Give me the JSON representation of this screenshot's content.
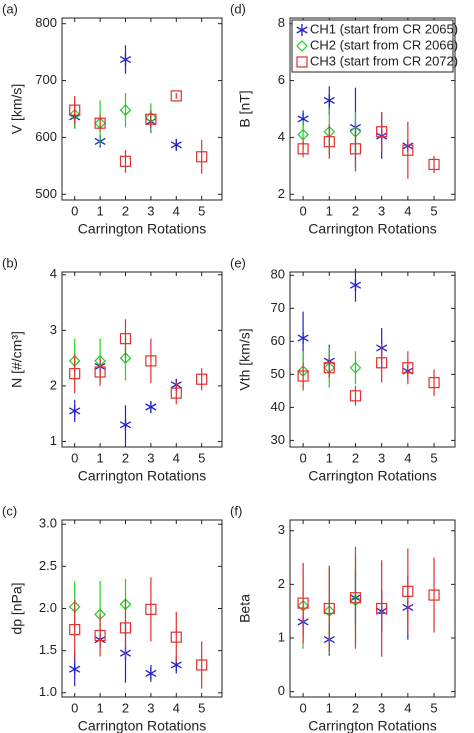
{
  "chart_data": [
    {
      "type": "scatter",
      "label": "(a)",
      "xlabel": "Carrington Rotations",
      "ylabel": "V [km/s]",
      "xlim": [
        -0.5,
        5.8
      ],
      "xticks": [
        0,
        1,
        2,
        3,
        4,
        5
      ],
      "ylim": [
        490,
        810
      ],
      "yticks": [
        500,
        600,
        700,
        800
      ],
      "series": [
        {
          "color": "#2222cc",
          "marker": "asterisk",
          "x": [
            0,
            1,
            2,
            3,
            4
          ],
          "values": [
            636,
            593,
            737,
            628,
            587
          ],
          "errors": [
            20,
            10,
            25,
            20,
            10
          ]
        },
        {
          "color": "#22cc22",
          "marker": "diamond",
          "x": [
            0,
            1,
            2,
            3
          ],
          "values": [
            640,
            625,
            648,
            635
          ],
          "errors": [
            25,
            40,
            30,
            25
          ]
        },
        {
          "color": "#e03030",
          "marker": "square",
          "x": [
            0,
            1,
            2,
            3,
            4,
            5
          ],
          "values": [
            648,
            625,
            558,
            632,
            673,
            566
          ],
          "errors": [
            25,
            15,
            20,
            15,
            5,
            30
          ]
        }
      ]
    },
    {
      "type": "scatter",
      "label": "(d)",
      "xlabel": "Carrington Rotations",
      "ylabel": "B [nT]",
      "xlim": [
        -0.5,
        5.8
      ],
      "xticks": [
        0,
        1,
        2,
        3,
        4,
        5
      ],
      "ylim": [
        1.8,
        8.2
      ],
      "yticks": [
        2,
        4,
        6,
        8
      ],
      "series": [
        {
          "name": "CH1 (start from CR 2065)",
          "color": "#2222cc",
          "marker": "asterisk",
          "x": [
            0,
            1,
            2,
            3,
            4
          ],
          "values": [
            4.65,
            5.3,
            4.35,
            4.05,
            3.7
          ],
          "errors": [
            0.3,
            0.5,
            1.4,
            0.8,
            0.2
          ]
        },
        {
          "name": "CH2 (start from CR 2066)",
          "color": "#22cc22",
          "marker": "diamond",
          "x": [
            0,
            1,
            2
          ],
          "values": [
            4.1,
            4.2,
            4.2
          ],
          "errors": [
            0.5,
            0.8,
            0.7
          ]
        },
        {
          "name": "CH3 (start from CR 2072)",
          "color": "#e03030",
          "marker": "square",
          "x": [
            0,
            1,
            2,
            3,
            4,
            5
          ],
          "values": [
            3.6,
            3.85,
            3.6,
            4.2,
            3.55,
            3.05
          ],
          "errors": [
            0.3,
            0.6,
            0.8,
            0.7,
            1.0,
            0.3
          ]
        }
      ]
    },
    {
      "type": "scatter",
      "label": "(b)",
      "xlabel": "Carrington Rotations",
      "ylabel": "N [#/cm³]",
      "xlim": [
        -0.5,
        5.8
      ],
      "xticks": [
        0,
        1,
        2,
        3,
        4,
        5
      ],
      "ylim": [
        0.9,
        4.05
      ],
      "yticks": [
        1,
        2,
        3,
        4
      ],
      "series": [
        {
          "color": "#2222cc",
          "marker": "asterisk",
          "x": [
            0,
            1,
            2,
            3,
            4
          ],
          "values": [
            1.55,
            2.35,
            1.3,
            1.62,
            2.02
          ],
          "errors": [
            0.2,
            0.15,
            0.35,
            0.1,
            0.1
          ]
        },
        {
          "color": "#22cc22",
          "marker": "diamond",
          "x": [
            0,
            1,
            2
          ],
          "values": [
            2.45,
            2.45,
            2.5
          ],
          "errors": [
            0.4,
            0.4,
            0.4
          ]
        },
        {
          "color": "#e03030",
          "marker": "square",
          "x": [
            0,
            1,
            2,
            3,
            4,
            5
          ],
          "values": [
            2.22,
            2.25,
            2.85,
            2.45,
            1.87,
            2.12
          ],
          "errors": [
            0.35,
            0.25,
            0.35,
            0.4,
            0.2,
            0.2
          ]
        }
      ]
    },
    {
      "type": "scatter",
      "label": "(e)",
      "xlabel": "Carrington Rotations",
      "ylabel": "Vth [km/s]",
      "xlim": [
        -0.5,
        5.8
      ],
      "xticks": [
        0,
        1,
        2,
        3,
        4,
        5
      ],
      "ylim": [
        28,
        81
      ],
      "yticks": [
        30,
        40,
        50,
        60,
        70,
        80
      ],
      "series": [
        {
          "color": "#2222cc",
          "marker": "asterisk",
          "x": [
            0,
            1,
            2,
            3,
            4
          ],
          "values": [
            61,
            54,
            77,
            58,
            51
          ],
          "errors": [
            8,
            5,
            5,
            6,
            2
          ]
        },
        {
          "color": "#22cc22",
          "marker": "diamond",
          "x": [
            0,
            1,
            2
          ],
          "values": [
            51,
            52,
            52
          ],
          "errors": [
            6,
            6,
            5
          ]
        },
        {
          "color": "#e03030",
          "marker": "square",
          "x": [
            0,
            1,
            2,
            3,
            4,
            5
          ],
          "values": [
            49.5,
            52,
            43.5,
            53.5,
            52,
            47.5
          ],
          "errors": [
            4,
            3,
            3,
            6,
            5,
            4
          ]
        }
      ]
    },
    {
      "type": "scatter",
      "label": "(c)",
      "xlabel": "Carrington Rotations",
      "ylabel": "dp [nPa]",
      "xlim": [
        -0.5,
        5.8
      ],
      "xticks": [
        0,
        1,
        2,
        3,
        4,
        5
      ],
      "ylim": [
        0.95,
        3.05
      ],
      "yticks": [
        {
          "value": 1,
          "label": "1.0"
        },
        1.5,
        {
          "value": 2,
          "label": "2.0"
        },
        2.5,
        {
          "value": 3,
          "label": "3.0"
        }
      ],
      "series": [
        {
          "color": "#2222cc",
          "marker": "asterisk",
          "x": [
            0,
            1,
            2,
            3,
            4
          ],
          "values": [
            1.28,
            1.63,
            1.47,
            1.23,
            1.33
          ],
          "errors": [
            0.2,
            0.1,
            0.35,
            0.1,
            0.1
          ]
        },
        {
          "color": "#22cc22",
          "marker": "diamond",
          "x": [
            0,
            1,
            2
          ],
          "values": [
            2.02,
            1.93,
            2.05
          ],
          "errors": [
            0.3,
            0.4,
            0.3
          ]
        },
        {
          "color": "#e03030",
          "marker": "square",
          "x": [
            0,
            1,
            2,
            3,
            4,
            5
          ],
          "values": [
            1.75,
            1.68,
            1.77,
            1.99,
            1.66,
            1.33
          ],
          "errors": [
            0.35,
            0.25,
            0.35,
            0.38,
            0.3,
            0.28
          ]
        }
      ]
    },
    {
      "type": "scatter",
      "label": "(f)",
      "xlabel": "Carrington Rotations",
      "ylabel": "Beta",
      "xlim": [
        -0.5,
        5.8
      ],
      "xticks": [
        0,
        1,
        2,
        3,
        4,
        5
      ],
      "ylim": [
        -0.1,
        3.2
      ],
      "yticks": [
        0,
        1,
        2,
        3
      ],
      "series": [
        {
          "color": "#2222cc",
          "marker": "asterisk",
          "x": [
            0,
            1,
            2,
            3,
            4
          ],
          "values": [
            1.3,
            0.97,
            1.75,
            1.5,
            1.57
          ],
          "errors": [
            0.3,
            0.3,
            0.5,
            0.4,
            0.6
          ]
        },
        {
          "color": "#22cc22",
          "marker": "diamond",
          "x": [
            0,
            1,
            2
          ],
          "values": [
            1.6,
            1.5,
            1.7
          ],
          "errors": [
            0.8,
            0.8,
            0.8
          ]
        },
        {
          "color": "#e03030",
          "marker": "square",
          "x": [
            0,
            1,
            2,
            3,
            4,
            5
          ],
          "values": [
            1.65,
            1.55,
            1.75,
            1.55,
            1.87,
            1.8
          ],
          "errors": [
            0.75,
            0.8,
            0.95,
            0.9,
            0.8,
            0.7
          ]
        }
      ]
    }
  ]
}
